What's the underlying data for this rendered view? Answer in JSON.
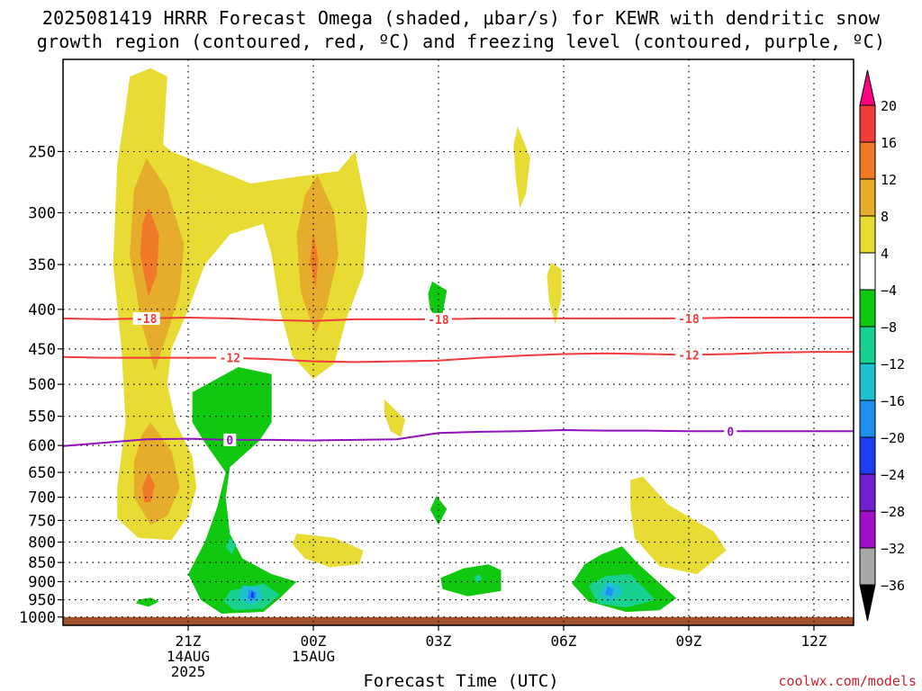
{
  "chart_data": {
    "type": "heatmap",
    "title_line1": "2025081419 HRRR Forecast Omega (shaded, μbar/s) for KEWR with dendritic snow",
    "title_line2": "growth region (contoured, red, ºC) and freezing level (contoured, purple, ºC)",
    "xlabel": "Forecast Time (UTC)",
    "credit": "coolwx.com/models",
    "x_ticks": [
      {
        "t": 2,
        "label": "21Z",
        "sub1": "14AUG",
        "sub2": "2025"
      },
      {
        "t": 5,
        "label": "00Z",
        "sub1": "15AUG",
        "sub2": ""
      },
      {
        "t": 8,
        "label": "03Z",
        "sub1": "",
        "sub2": ""
      },
      {
        "t": 11,
        "label": "06Z",
        "sub1": "",
        "sub2": ""
      },
      {
        "t": 14,
        "label": "09Z",
        "sub1": "",
        "sub2": ""
      },
      {
        "t": 17,
        "label": "12Z",
        "sub1": "",
        "sub2": ""
      }
    ],
    "xlim": [
      -1,
      17.95
    ],
    "y_ticks": [
      250,
      300,
      350,
      400,
      450,
      500,
      550,
      600,
      650,
      700,
      750,
      800,
      850,
      900,
      950,
      1000
    ],
    "ylim_hPa": [
      1025,
      190
    ],
    "colorbar": {
      "labels": [
        "20",
        "16",
        "12",
        "8",
        "4",
        "−4",
        "−8",
        "−12",
        "−16",
        "−20",
        "−24",
        "−28",
        "−32",
        "−36"
      ],
      "colors": [
        "#ff0080",
        "#f23c3c",
        "#f07a2a",
        "#e6ac2c",
        "#e8dc34",
        "#ffffff",
        "#10c810",
        "#18d090",
        "#20c0d0",
        "#2090f0",
        "#1e3cf0",
        "#7020d0",
        "#a010c8",
        "#a8a8a8",
        "#000000"
      ]
    },
    "contours": [
      {
        "label": "-18",
        "color": "#f03c3c",
        "points": [
          [
            -1,
            411
          ],
          [
            0,
            412
          ],
          [
            1,
            411
          ],
          [
            2,
            410
          ],
          [
            3,
            411
          ],
          [
            4,
            413
          ],
          [
            5,
            414
          ],
          [
            6,
            412
          ],
          [
            7,
            412
          ],
          [
            8,
            412
          ],
          [
            9,
            411
          ],
          [
            10,
            411
          ],
          [
            11,
            411
          ],
          [
            12,
            411
          ],
          [
            13,
            411
          ],
          [
            14,
            411
          ],
          [
            15,
            410
          ],
          [
            16,
            410
          ],
          [
            17,
            410
          ],
          [
            17.95,
            410
          ]
        ],
        "label_t": [
          1,
          8,
          14
        ]
      },
      {
        "label": "-12",
        "color": "#f03c3c",
        "points": [
          [
            -1,
            461
          ],
          [
            0,
            462
          ],
          [
            1,
            462
          ],
          [
            2,
            462
          ],
          [
            3,
            462
          ],
          [
            4,
            464
          ],
          [
            5,
            467
          ],
          [
            6,
            468
          ],
          [
            7,
            467
          ],
          [
            8,
            466
          ],
          [
            9,
            462
          ],
          [
            10,
            459
          ],
          [
            11,
            457
          ],
          [
            12,
            456
          ],
          [
            13,
            457
          ],
          [
            14,
            458
          ],
          [
            15,
            457
          ],
          [
            16,
            455
          ],
          [
            17,
            454
          ],
          [
            17.95,
            454
          ]
        ],
        "label_t": [
          3,
          14
        ]
      },
      {
        "label": "0",
        "color": "#9010c0",
        "points": [
          [
            -1,
            601
          ],
          [
            0,
            595
          ],
          [
            1,
            589
          ],
          [
            2,
            588
          ],
          [
            3,
            590
          ],
          [
            4,
            590
          ],
          [
            5,
            591
          ],
          [
            6,
            590
          ],
          [
            7,
            589
          ],
          [
            8,
            578
          ],
          [
            9,
            576
          ],
          [
            10,
            575
          ],
          [
            11,
            573
          ],
          [
            12,
            574
          ],
          [
            13,
            574
          ],
          [
            14,
            575
          ],
          [
            15,
            575
          ],
          [
            16,
            575
          ],
          [
            17,
            575
          ],
          [
            17.95,
            575
          ]
        ],
        "label_t": [
          3,
          15
        ]
      }
    ],
    "omega_regions": [
      {
        "color": "#e8dc34",
        "points": [
          [
            0.6,
            200
          ],
          [
            1.1,
            195
          ],
          [
            1.5,
            200
          ],
          [
            1.4,
            245
          ],
          [
            1.6,
            250
          ],
          [
            3.5,
            275
          ],
          [
            4.5,
            270
          ],
          [
            5.6,
            265
          ],
          [
            6,
            250
          ],
          [
            6.3,
            300
          ],
          [
            6.2,
            360
          ],
          [
            5.8,
            410
          ],
          [
            5.5,
            470
          ],
          [
            5,
            492
          ],
          [
            4.5,
            460
          ],
          [
            4.2,
            400
          ],
          [
            4,
            340
          ],
          [
            3.8,
            310
          ],
          [
            3,
            320
          ],
          [
            2.4,
            350
          ],
          [
            2,
            400
          ],
          [
            1.6,
            450
          ],
          [
            1.5,
            500
          ],
          [
            1.7,
            560
          ],
          [
            2.1,
            620
          ],
          [
            2.2,
            680
          ],
          [
            2,
            740
          ],
          [
            1.6,
            795
          ],
          [
            0.8,
            790
          ],
          [
            0.3,
            745
          ],
          [
            0.3,
            680
          ],
          [
            0.5,
            560
          ],
          [
            0.4,
            450
          ],
          [
            0.2,
            350
          ],
          [
            0.3,
            260
          ],
          [
            0.5,
            220
          ]
        ]
      },
      {
        "color": "#e6ac2c",
        "points": [
          [
            1,
            255
          ],
          [
            1.5,
            280
          ],
          [
            1.9,
            330
          ],
          [
            1.8,
            380
          ],
          [
            1.5,
            430
          ],
          [
            1.2,
            480
          ],
          [
            0.9,
            420
          ],
          [
            0.6,
            340
          ],
          [
            0.7,
            280
          ]
        ]
      },
      {
        "color": "#e6ac2c",
        "points": [
          [
            1.1,
            560
          ],
          [
            1.6,
            610
          ],
          [
            1.8,
            680
          ],
          [
            1.5,
            740
          ],
          [
            1.1,
            760
          ],
          [
            0.7,
            700
          ],
          [
            0.7,
            630
          ],
          [
            0.9,
            580
          ]
        ]
      },
      {
        "color": "#f07a2a",
        "points": [
          [
            1.05,
            295
          ],
          [
            1.3,
            320
          ],
          [
            1.25,
            360
          ],
          [
            1.05,
            385
          ],
          [
            0.85,
            340
          ],
          [
            0.9,
            310
          ]
        ]
      },
      {
        "color": "#f07a2a",
        "points": [
          [
            1.05,
            650
          ],
          [
            1.2,
            675
          ],
          [
            1.1,
            710
          ],
          [
            0.95,
            710
          ],
          [
            0.9,
            680
          ]
        ]
      },
      {
        "color": "#e6ac2c",
        "points": [
          [
            5.1,
            268
          ],
          [
            5.5,
            300
          ],
          [
            5.6,
            340
          ],
          [
            5.3,
            400
          ],
          [
            5.05,
            430
          ],
          [
            4.7,
            380
          ],
          [
            4.6,
            320
          ],
          [
            4.8,
            285
          ]
        ]
      },
      {
        "color": "#f07a2a",
        "points": [
          [
            5,
            318
          ],
          [
            5.12,
            345
          ],
          [
            5.05,
            375
          ],
          [
            4.92,
            345
          ]
        ]
      },
      {
        "color": "#e8dc34",
        "points": [
          [
            9.9,
            232
          ],
          [
            10.2,
            255
          ],
          [
            10.1,
            283
          ],
          [
            9.95,
            296
          ],
          [
            9.85,
            270
          ],
          [
            9.8,
            245
          ]
        ]
      },
      {
        "color": "#e8dc34",
        "points": [
          [
            10.7,
            348
          ],
          [
            10.95,
            355
          ],
          [
            10.95,
            385
          ],
          [
            10.8,
            418
          ],
          [
            10.65,
            390
          ],
          [
            10.6,
            362
          ]
        ]
      },
      {
        "color": "#e8dc34",
        "points": [
          [
            6.7,
            523
          ],
          [
            7.2,
            555
          ],
          [
            7.1,
            585
          ],
          [
            6.85,
            575
          ],
          [
            6.7,
            545
          ]
        ]
      },
      {
        "color": "#e8dc34",
        "points": [
          [
            4.6,
            780
          ],
          [
            5.5,
            790
          ],
          [
            6.2,
            820
          ],
          [
            6.1,
            855
          ],
          [
            5.4,
            862
          ],
          [
            4.8,
            840
          ],
          [
            4.5,
            805
          ]
        ]
      },
      {
        "color": "#e8dc34",
        "points": [
          [
            12.9,
            658
          ],
          [
            13.5,
            715
          ],
          [
            14.6,
            775
          ],
          [
            14.9,
            820
          ],
          [
            14.2,
            880
          ],
          [
            13.3,
            860
          ],
          [
            12.7,
            790
          ],
          [
            12.6,
            720
          ],
          [
            12.6,
            665
          ]
        ]
      },
      {
        "color": "#10c810",
        "points": [
          [
            2.1,
            512
          ],
          [
            3.2,
            475
          ],
          [
            4.0,
            485
          ],
          [
            4.0,
            560
          ],
          [
            3.7,
            592
          ],
          [
            3.0,
            640
          ],
          [
            2.9,
            700
          ],
          [
            3.0,
            780
          ],
          [
            3.3,
            840
          ],
          [
            4.0,
            880
          ],
          [
            4.6,
            900
          ],
          [
            4.2,
            945
          ],
          [
            3.8,
            985
          ],
          [
            2.8,
            990
          ],
          [
            2.3,
            950
          ],
          [
            2.0,
            880
          ],
          [
            2.4,
            800
          ],
          [
            2.7,
            720
          ],
          [
            2.9,
            650
          ],
          [
            2.4,
            595
          ],
          [
            2.1,
            560
          ]
        ]
      },
      {
        "color": "#10c810",
        "points": [
          [
            7.85,
            368
          ],
          [
            8.2,
            378
          ],
          [
            8.1,
            405
          ],
          [
            8.0,
            415
          ],
          [
            7.8,
            400
          ],
          [
            7.75,
            382
          ]
        ]
      },
      {
        "color": "#10c810",
        "points": [
          [
            7.95,
            697
          ],
          [
            8.2,
            725
          ],
          [
            8.0,
            760
          ],
          [
            7.8,
            726
          ]
        ]
      },
      {
        "color": "#10c810",
        "points": [
          [
            8.6,
            865
          ],
          [
            9.2,
            855
          ],
          [
            9.5,
            870
          ],
          [
            9.5,
            925
          ],
          [
            8.7,
            940
          ],
          [
            8.1,
            920
          ],
          [
            8.05,
            890
          ]
        ]
      },
      {
        "color": "#10c810",
        "points": [
          [
            11.9,
            830
          ],
          [
            12.4,
            810
          ],
          [
            12.8,
            855
          ],
          [
            13.7,
            945
          ],
          [
            13.3,
            980
          ],
          [
            12.5,
            985
          ],
          [
            11.6,
            955
          ],
          [
            11.2,
            905
          ],
          [
            11.5,
            855
          ]
        ]
      },
      {
        "color": "#10c810",
        "points": [
          [
            0.8,
            950
          ],
          [
            1.1,
            944
          ],
          [
            1.3,
            955
          ],
          [
            1.05,
            970
          ],
          [
            0.75,
            960
          ]
        ]
      },
      {
        "color": "#18d090",
        "points": [
          [
            3.0,
            925
          ],
          [
            3.8,
            905
          ],
          [
            4.2,
            935
          ],
          [
            3.8,
            975
          ],
          [
            3.1,
            980
          ],
          [
            2.85,
            955
          ]
        ]
      },
      {
        "color": "#18d090",
        "points": [
          [
            12.0,
            885
          ],
          [
            12.6,
            880
          ],
          [
            13.2,
            950
          ],
          [
            12.5,
            972
          ],
          [
            11.8,
            960
          ],
          [
            11.6,
            910
          ]
        ]
      },
      {
        "color": "#18d090",
        "points": [
          [
            3.0,
            790
          ],
          [
            3.15,
            805
          ],
          [
            3.05,
            830
          ],
          [
            2.9,
            812
          ]
        ]
      },
      {
        "color": "#18d090",
        "points": [
          [
            8.95,
            880
          ],
          [
            9.05,
            890
          ],
          [
            8.95,
            905
          ],
          [
            8.85,
            890
          ]
        ]
      },
      {
        "color": "#20c0d0",
        "points": [
          [
            3.3,
            910
          ],
          [
            3.7,
            915
          ],
          [
            3.8,
            945
          ],
          [
            3.5,
            965
          ],
          [
            3.2,
            945
          ]
        ]
      },
      {
        "color": "#20c0d0",
        "points": [
          [
            12.0,
            900
          ],
          [
            12.35,
            910
          ],
          [
            12.4,
            935
          ],
          [
            12.1,
            955
          ],
          [
            11.85,
            935
          ]
        ]
      },
      {
        "color": "#2090f0",
        "points": [
          [
            3.45,
            920
          ],
          [
            3.65,
            930
          ],
          [
            3.6,
            950
          ],
          [
            3.42,
            948
          ]
        ]
      },
      {
        "color": "#2090f0",
        "points": [
          [
            12.05,
            912
          ],
          [
            12.2,
            920
          ],
          [
            12.15,
            940
          ],
          [
            12.0,
            935
          ]
        ]
      },
      {
        "color": "#1e3cf0",
        "points": [
          [
            3.52,
            925
          ],
          [
            3.58,
            930
          ],
          [
            3.57,
            945
          ],
          [
            3.5,
            942
          ]
        ]
      }
    ],
    "ground": {
      "color": "#a0522d",
      "top_hPa": 1000
    }
  }
}
